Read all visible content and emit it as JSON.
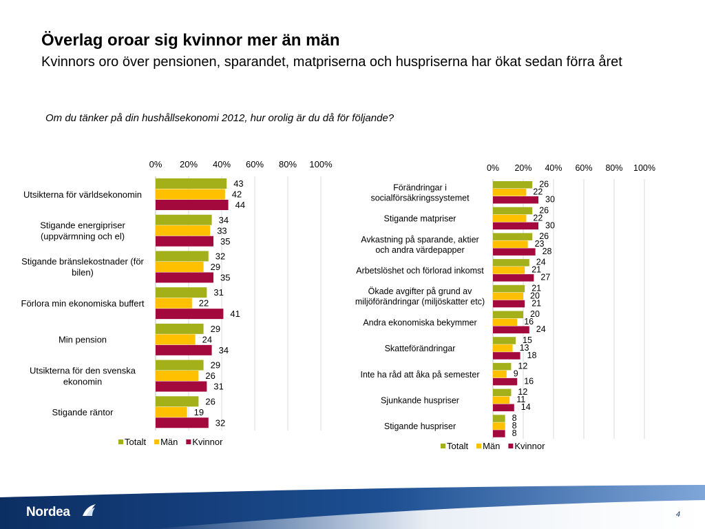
{
  "title": "Överlag oroar sig kvinnor mer än män",
  "subtitle": "Kvinnors oro över pensionen, sparandet, matpriserna och huspriserna har ökat sedan förra året",
  "question": "Om du tänker på din hushållsekonomi 2012, hur orolig är du då för följande?",
  "brand": "Nordea",
  "page_number": "4",
  "colors": {
    "Totalt": "#a3b01a",
    "Män": "#ffc000",
    "Kvinnor": "#a4093e"
  },
  "chart_data": [
    {
      "type": "bar",
      "orientation": "horizontal",
      "xlim": [
        0,
        100
      ],
      "ticks": [
        "0%",
        "20%",
        "40%",
        "60%",
        "80%",
        "100%"
      ],
      "legend": "bottom",
      "categories": [
        "Utsikterna för världsekonomin",
        "Stigande energipriser (uppvärmning och el)",
        "Stigande bränslekostnader (för bilen)",
        "Förlora min ekonomiska buffert",
        "Min pension",
        "Utsikterna för den svenska ekonomin",
        "Stigande räntor"
      ],
      "category_lines": [
        [
          "Utsikterna för världsekonomin"
        ],
        [
          "Stigande energipriser",
          "(uppvärmning och el)"
        ],
        [
          "Stigande bränslekostnader (för",
          "bilen)"
        ],
        [
          "Förlora min ekonomiska buffert"
        ],
        [
          "Min pension"
        ],
        [
          "Utsikterna för den svenska",
          "ekonomin"
        ],
        [
          "Stigande räntor"
        ]
      ],
      "series": [
        {
          "name": "Totalt",
          "values": [
            43,
            34,
            32,
            31,
            29,
            29,
            26
          ]
        },
        {
          "name": "Män",
          "values": [
            42,
            33,
            29,
            22,
            24,
            26,
            19
          ]
        },
        {
          "name": "Kvinnor",
          "values": [
            44,
            35,
            35,
            41,
            34,
            31,
            32
          ]
        }
      ]
    },
    {
      "type": "bar",
      "orientation": "horizontal",
      "xlim": [
        0,
        100
      ],
      "ticks": [
        "0%",
        "20%",
        "40%",
        "60%",
        "80%",
        "100%"
      ],
      "legend": "bottom",
      "categories": [
        "Förändringar i socialförsäkringssystemet",
        "Stigande matpriser",
        "Avkastning på sparande, aktier och andra värdepapper",
        "Arbetslöshet och förlorad inkomst",
        "Ökade avgifter på grund av miljöförändringar (miljöskatter etc)",
        "Andra ekonomiska bekymmer",
        "Skatteförändringar",
        "Inte ha råd att åka på semester",
        "Sjunkande huspriser",
        "Stigande huspriser"
      ],
      "category_lines": [
        [
          "Förändringar i",
          "socialförsäkringssystemet"
        ],
        [
          "Stigande matpriser"
        ],
        [
          "Avkastning på sparande, aktier",
          "och andra värdepapper"
        ],
        [
          "Arbetslöshet och förlorad inkomst"
        ],
        [
          "Ökade avgifter på grund av",
          "miljöförändringar (miljöskatter etc)"
        ],
        [
          "Andra ekonomiska bekymmer"
        ],
        [
          "Skatteförändringar"
        ],
        [
          "Inte ha råd att åka på semester"
        ],
        [
          "Sjunkande huspriser"
        ],
        [
          "Stigande huspriser"
        ]
      ],
      "series": [
        {
          "name": "Totalt",
          "values": [
            26,
            26,
            26,
            24,
            21,
            20,
            15,
            12,
            12,
            8
          ]
        },
        {
          "name": "Män",
          "values": [
            22,
            22,
            23,
            21,
            20,
            16,
            13,
            9,
            11,
            8
          ]
        },
        {
          "name": "Kvinnor",
          "values": [
            30,
            30,
            28,
            27,
            21,
            24,
            18,
            16,
            14,
            8
          ]
        }
      ]
    }
  ]
}
